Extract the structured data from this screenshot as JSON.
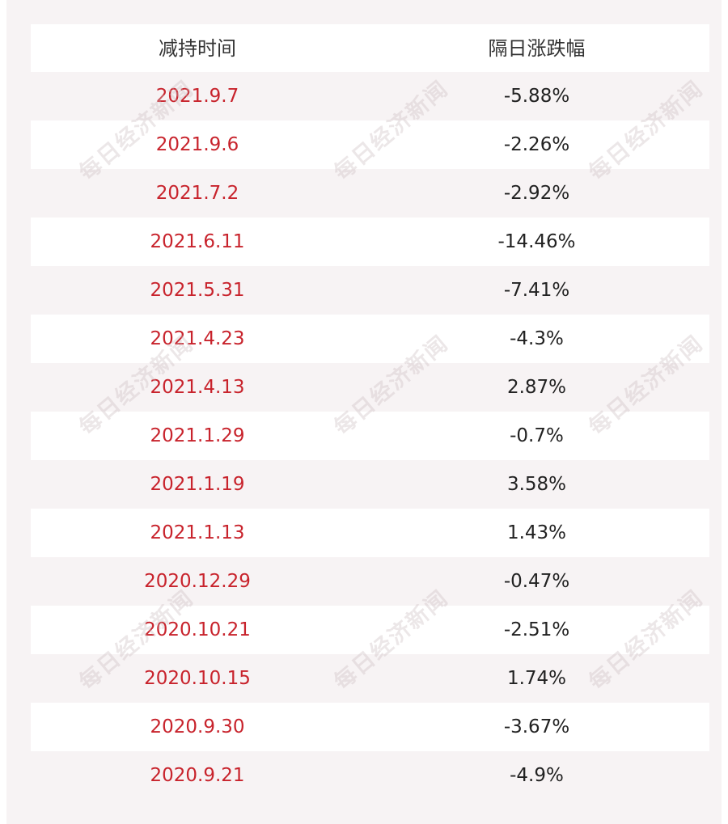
{
  "table": {
    "headers": {
      "date": "减持时间",
      "change": "隔日涨跌幅"
    },
    "rows": [
      {
        "date": "2021.9.7",
        "change": "-5.88%"
      },
      {
        "date": "2021.9.6",
        "change": "-2.26%"
      },
      {
        "date": "2021.7.2",
        "change": "-2.92%"
      },
      {
        "date": "2021.6.11",
        "change": "-14.46%"
      },
      {
        "date": "2021.5.31",
        "change": "-7.41%"
      },
      {
        "date": "2021.4.23",
        "change": "-4.3%"
      },
      {
        "date": "2021.4.13",
        "change": "2.87%"
      },
      {
        "date": "2021.1.29",
        "change": "-0.7%"
      },
      {
        "date": "2021.1.19",
        "change": "3.58%"
      },
      {
        "date": "2021.1.13",
        "change": "1.43%"
      },
      {
        "date": "2020.12.29",
        "change": "-0.47%"
      },
      {
        "date": "2020.10.21",
        "change": "-2.51%"
      },
      {
        "date": "2020.10.15",
        "change": "1.74%"
      },
      {
        "date": "2020.9.30",
        "change": "-3.67%"
      },
      {
        "date": "2020.9.21",
        "change": "-4.9%"
      }
    ]
  },
  "watermark": {
    "text": "每日经济新闻"
  },
  "colors": {
    "date_text": "#c8232c",
    "value_text": "#222222",
    "header_text": "#333333",
    "row_tint": "#f7f3f4",
    "row_white": "#ffffff"
  }
}
